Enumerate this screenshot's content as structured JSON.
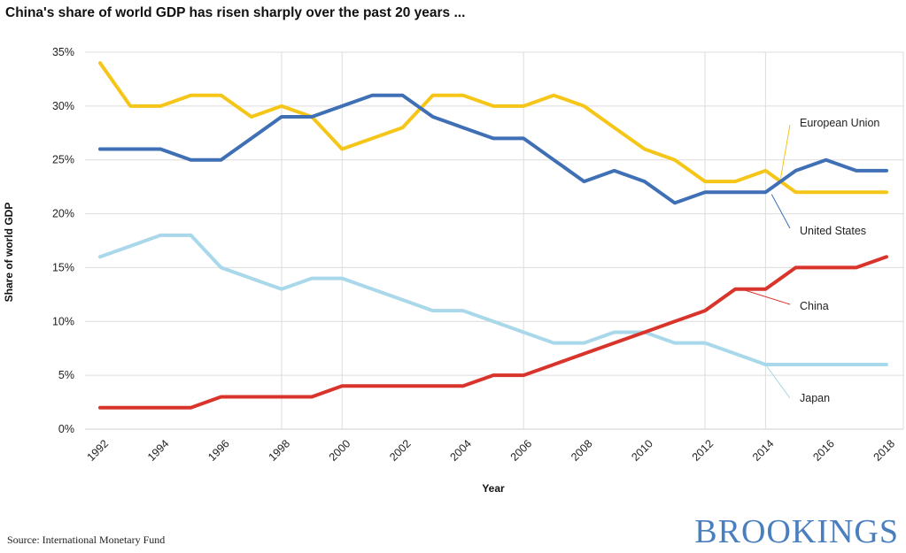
{
  "title": "China's share of world GDP has risen sharply over the past 20 years ...",
  "source": "Source: International Monetary Fund",
  "logo": "BROOKINGS",
  "chart_data": {
    "type": "line",
    "xlabel": "Year",
    "ylabel": "Share of world GDP",
    "ylim": [
      0,
      35
    ],
    "yticks": [
      "0%",
      "5%",
      "10%",
      "15%",
      "20%",
      "25%",
      "30%",
      "35%"
    ],
    "xticks": [
      "1992",
      "1994",
      "1996",
      "1998",
      "2000",
      "2002",
      "2004",
      "2006",
      "2008",
      "2010",
      "2012",
      "2014",
      "2016",
      "2018"
    ],
    "x": [
      1992,
      1993,
      1994,
      1995,
      1996,
      1997,
      1998,
      1999,
      2000,
      2001,
      2002,
      2003,
      2004,
      2005,
      2006,
      2007,
      2008,
      2009,
      2010,
      2011,
      2012,
      2013,
      2014,
      2015,
      2016,
      2017,
      2018
    ],
    "grid": "vertical lines at 1998, 2000, 2006, 2012, 2014",
    "series": [
      {
        "name": "European Union",
        "color": "#f5c518",
        "values": [
          34,
          30,
          30,
          31,
          31,
          29,
          30,
          29,
          26,
          27,
          28,
          31,
          31,
          30,
          30,
          31,
          30,
          28,
          26,
          25,
          23,
          23,
          24,
          22,
          22,
          22,
          22
        ]
      },
      {
        "name": "United States",
        "color": "#3f6fb5",
        "values": [
          26,
          26,
          26,
          25,
          25,
          27,
          29,
          29,
          30,
          31,
          31,
          29,
          28,
          27,
          27,
          25,
          23,
          24,
          23,
          21,
          22,
          22,
          22,
          24,
          25,
          24,
          24
        ]
      },
      {
        "name": "China",
        "color": "#d9342b",
        "values": [
          2,
          2,
          2,
          2,
          3,
          3,
          3,
          3,
          4,
          4,
          4,
          4,
          4,
          5,
          5,
          6,
          7,
          8,
          9,
          10,
          11,
          13,
          13,
          15,
          15,
          15,
          16
        ]
      },
      {
        "name": "Japan",
        "color": "#a9d8ea",
        "values": [
          16,
          17,
          18,
          18,
          15,
          14,
          13,
          14,
          14,
          13,
          12,
          11,
          11,
          10,
          9,
          8,
          8,
          9,
          9,
          8,
          8,
          7,
          6,
          6,
          6,
          6,
          6
        ]
      }
    ]
  }
}
